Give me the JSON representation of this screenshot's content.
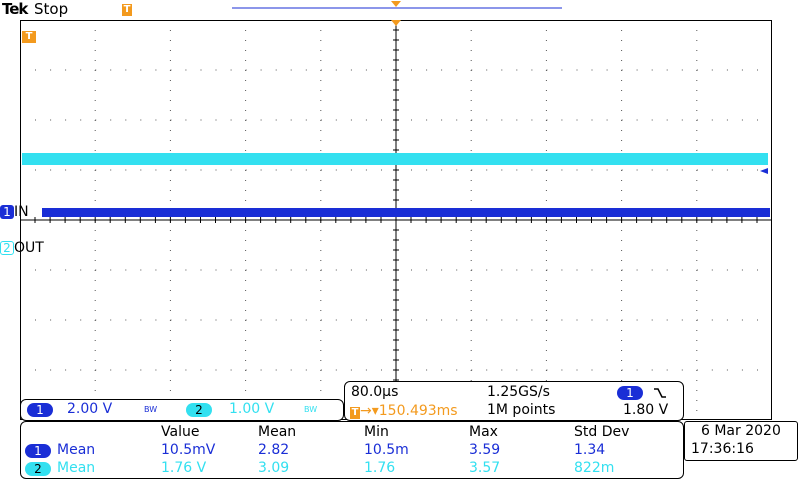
{
  "header": {
    "brand": "Tek",
    "status": "Stop",
    "trigger_marker": "T"
  },
  "channels": {
    "ch1": {
      "number": "1",
      "label": "IN",
      "color": "#1a2ed6"
    },
    "ch2": {
      "number": "2",
      "label": "OUT",
      "color": "#33e0f0"
    }
  },
  "scale_panel": {
    "ch1_scale": "2.00 V",
    "ch2_scale": "1.00 V",
    "bw_mark": "BW"
  },
  "timebase": {
    "time_per_div": "80.0µs",
    "sample_rate": "1.25GS/s",
    "trigger_channel": "1",
    "trigger_slope": "falling",
    "trigger_position": "150.493ms",
    "record_length": "1M points",
    "trigger_level": "1.80 V"
  },
  "measurements": {
    "headers": [
      "Value",
      "Mean",
      "Min",
      "Max",
      "Std Dev"
    ],
    "rows": [
      {
        "channel": "1",
        "type": "Mean",
        "value": "10.5mV",
        "mean": "2.82",
        "min": "10.5m",
        "max": "3.59",
        "std": "1.34"
      },
      {
        "channel": "2",
        "type": "Mean",
        "value": "1.76 V",
        "mean": "3.09",
        "min": "1.76",
        "max": "3.57",
        "std": "822m"
      }
    ]
  },
  "datetime": {
    "date": "6 Mar 2020",
    "time": "17:36:16"
  },
  "colors": {
    "ch1": "#1a2ed6",
    "ch2": "#33e0f0",
    "trigger": "#f39a1e"
  }
}
